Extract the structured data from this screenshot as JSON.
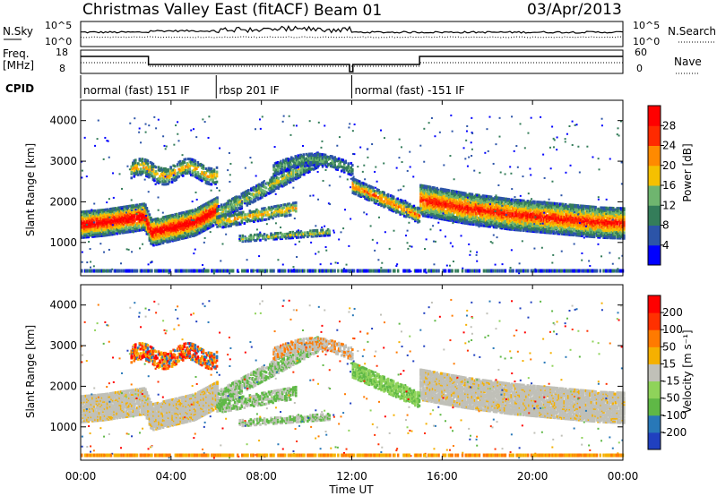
{
  "header": {
    "title": "Christmas Valley East (fitACF)",
    "beam": "Beam 01",
    "date": "03/Apr/2013"
  },
  "status_panels": {
    "nsky_label": "N.Sky",
    "nsky_ticks": [
      "10^5",
      "10^0"
    ],
    "nsearch_label": "N.Search",
    "nsearch_ticks": [
      "10^5",
      "10^0"
    ],
    "freq_label": "Freq.",
    "freq_unit": "[MHz]",
    "freq_ticks": [
      "18",
      "8"
    ],
    "nave_label": "Nave",
    "nave_ticks": [
      "60",
      "0"
    ],
    "cpid_label": "CPID",
    "cpid_segments": [
      {
        "label": "normal (fast) 151 IF",
        "start": 0,
        "end": 6
      },
      {
        "label": "rbsp 201 IF",
        "start": 6,
        "end": 12
      },
      {
        "label": "normal (fast) -151 IF",
        "start": 12,
        "end": 24
      }
    ]
  },
  "chart_data": [
    {
      "type": "heatmap",
      "name": "power",
      "ylabel": "Slant Range [km]",
      "yticks": [
        "1000",
        "2000",
        "3000",
        "4000"
      ],
      "ylim": [
        180,
        4500
      ],
      "colorbar_label": "Power [dB]",
      "colorbar_ticks": [
        "4",
        "8",
        "12",
        "16",
        "20",
        "24",
        "28"
      ],
      "colormap": [
        "#0000ff",
        "#2c54a8",
        "#347d5a",
        "#6fb56f",
        "#f5c000",
        "#ff8a00",
        "#ff2a00",
        "#ff0000"
      ],
      "main_band": [
        {
          "t": 0,
          "r": 1450
        },
        {
          "t": 1,
          "r": 1500
        },
        {
          "t": 2.8,
          "r": 1650
        },
        {
          "t": 3.1,
          "r": 1250
        },
        {
          "t": 5,
          "r": 1500
        },
        {
          "t": 6,
          "r": 1800
        }
      ],
      "late_band": [
        {
          "t": 15,
          "r": 2050
        },
        {
          "t": 17,
          "r": 1850
        },
        {
          "t": 19,
          "r": 1700
        },
        {
          "t": 21,
          "r": 1600
        },
        {
          "t": 23,
          "r": 1500
        },
        {
          "t": 24,
          "r": 1480
        }
      ]
    },
    {
      "type": "heatmap",
      "name": "velocity",
      "ylabel": "Slant Range [km]",
      "yticks": [
        "1000",
        "2000",
        "3000",
        "4000"
      ],
      "ylim": [
        180,
        4500
      ],
      "colorbar_label": "Velocity [m s⁻¹]",
      "colorbar_ticks": [
        "200",
        "100",
        "50",
        "15",
        "-15",
        "-50",
        "-100",
        "-200"
      ],
      "colormap": [
        "#2040c0",
        "#2878b8",
        "#5fb846",
        "#8fd35a",
        "#c0c0b8",
        "#f5b000",
        "#ff7a00",
        "#ff3000",
        "#ff0000"
      ]
    }
  ],
  "xaxis": {
    "label": "Time UT",
    "ticks": [
      "00:00",
      "04:00",
      "08:00",
      "12:00",
      "16:00",
      "20:00",
      "00:00"
    ],
    "range_hours": [
      0,
      24
    ]
  }
}
